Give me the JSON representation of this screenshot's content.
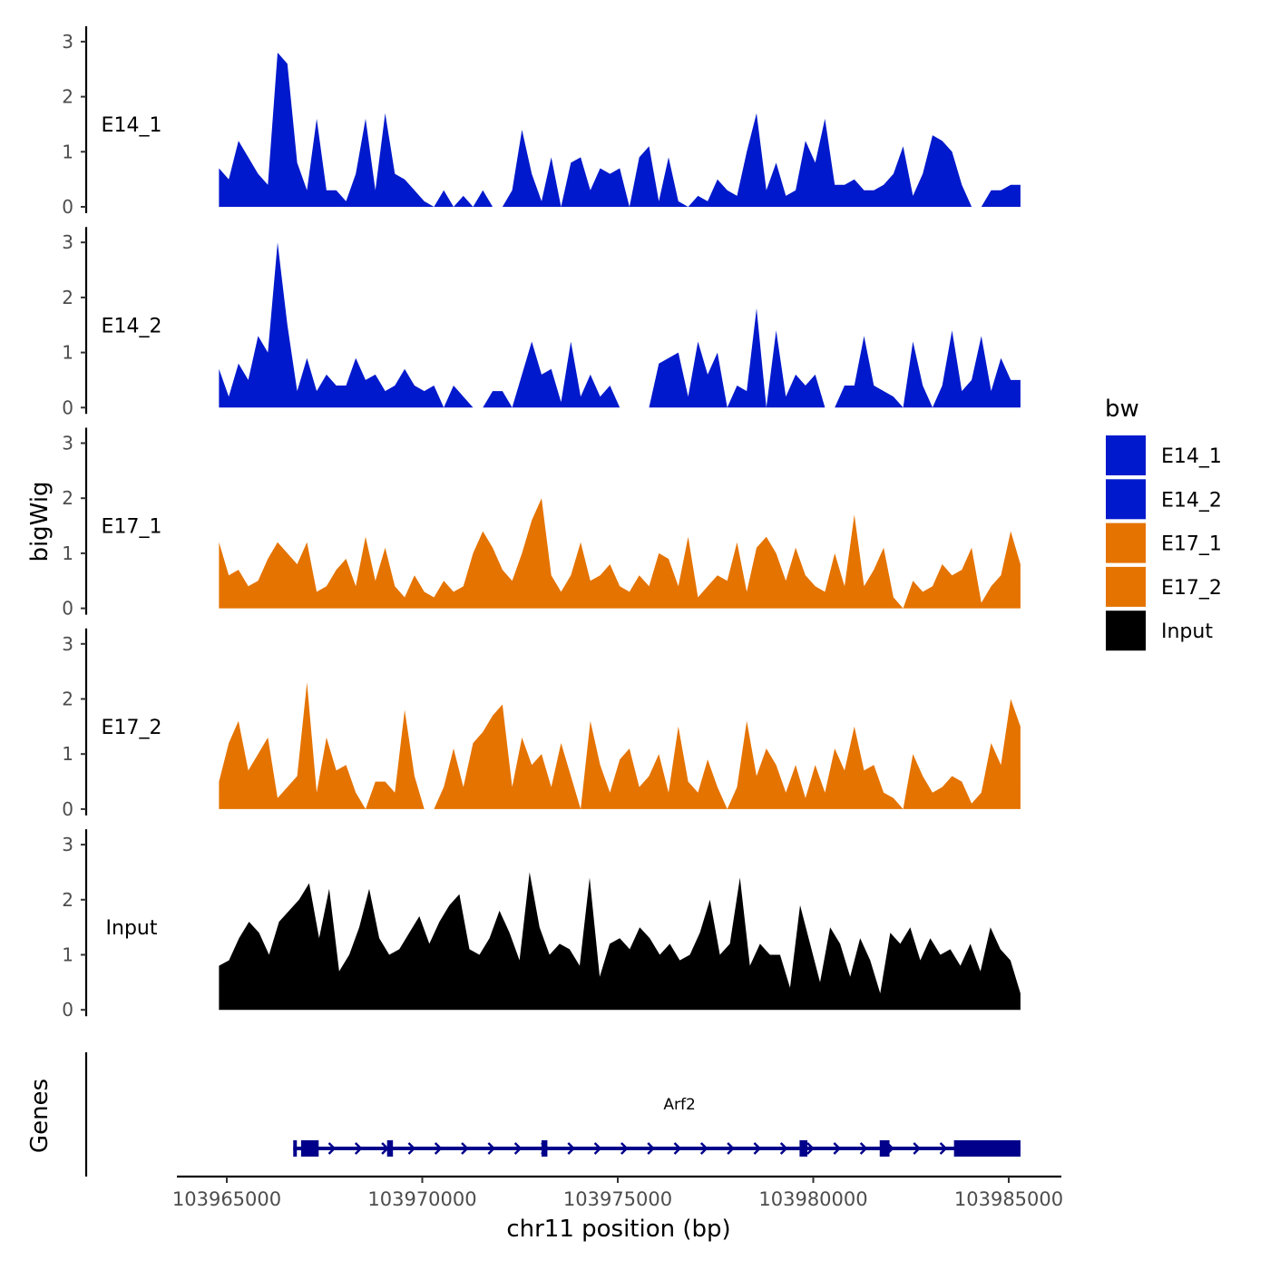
{
  "chart_data": {
    "type": "area",
    "xlabel": "chr11 position (bp)",
    "ylabel": "bigWig",
    "gene_track_label": "Genes",
    "xlim": [
      103962800,
      103985700
    ],
    "x_ticks": [
      103965000,
      103970000,
      103975000,
      103980000,
      103985000
    ],
    "x_tick_labels": [
      "103965000",
      "103970000",
      "103975000",
      "103980000",
      "103985000"
    ],
    "ylim": [
      0,
      3.2
    ],
    "y_ticks": [
      0,
      1,
      2,
      3
    ],
    "y_tick_labels": [
      "0",
      "1",
      "2",
      "3"
    ],
    "signal_x_range": [
      103964800,
      103985300
    ],
    "legend": {
      "title": "bw",
      "position": "right"
    },
    "series": [
      {
        "name": "E14_1",
        "color": "#0019cc",
        "values": [
          0.7,
          0.5,
          1.2,
          0.9,
          0.6,
          0.4,
          2.8,
          2.6,
          0.8,
          0.3,
          1.6,
          0.3,
          0.3,
          0.1,
          0.6,
          1.6,
          0.3,
          1.7,
          0.6,
          0.5,
          0.3,
          0.1,
          0,
          0.3,
          0,
          0.2,
          0,
          0.3,
          0,
          0,
          0.3,
          1.4,
          0.6,
          0.1,
          0.9,
          0,
          0.8,
          0.9,
          0.3,
          0.7,
          0.6,
          0.7,
          0,
          0.9,
          1.1,
          0.1,
          0.9,
          0.1,
          0,
          0.2,
          0.1,
          0.5,
          0.3,
          0.2,
          1.0,
          1.7,
          0.3,
          0.8,
          0.2,
          0.3,
          1.2,
          0.8,
          1.6,
          0.4,
          0.4,
          0.5,
          0.3,
          0.3,
          0.4,
          0.6,
          1.1,
          0.2,
          0.6,
          1.3,
          1.2,
          1.0,
          0.4,
          0,
          0,
          0.3,
          0.3,
          0.4,
          0.4
        ]
      },
      {
        "name": "E14_2",
        "color": "#0019cc",
        "values": [
          0.7,
          0.2,
          0.8,
          0.5,
          1.3,
          1.0,
          3.0,
          1.5,
          0.3,
          0.9,
          0.3,
          0.6,
          0.4,
          0.4,
          0.9,
          0.5,
          0.6,
          0.3,
          0.4,
          0.7,
          0.4,
          0.3,
          0.4,
          0,
          0.4,
          0.2,
          0,
          0,
          0.3,
          0.3,
          0,
          0.6,
          1.2,
          0.6,
          0.7,
          0.1,
          1.2,
          0.2,
          0.6,
          0.2,
          0.4,
          0,
          0,
          0,
          0,
          0.8,
          0.9,
          1.0,
          0.2,
          1.2,
          0.6,
          1.0,
          0,
          0.4,
          0.3,
          1.8,
          0,
          1.4,
          0.2,
          0.6,
          0.4,
          0.6,
          0,
          0,
          0.4,
          0.4,
          1.3,
          0.4,
          0.3,
          0.2,
          0,
          1.2,
          0.4,
          0,
          0.4,
          1.4,
          0.3,
          0.5,
          1.3,
          0.3,
          0.9,
          0.5,
          0.5
        ]
      },
      {
        "name": "E17_1",
        "color": "#e57300",
        "values": [
          1.2,
          0.6,
          0.7,
          0.4,
          0.5,
          0.9,
          1.2,
          1.0,
          0.8,
          1.2,
          0.3,
          0.4,
          0.7,
          0.9,
          0.4,
          1.3,
          0.5,
          1.1,
          0.4,
          0.2,
          0.6,
          0.3,
          0.2,
          0.5,
          0.3,
          0.4,
          1.0,
          1.4,
          1.1,
          0.7,
          0.5,
          1.0,
          1.6,
          2.0,
          0.6,
          0.3,
          0.6,
          1.2,
          0.5,
          0.6,
          0.8,
          0.4,
          0.3,
          0.6,
          0.4,
          1.0,
          0.9,
          0.4,
          1.3,
          0.2,
          0.4,
          0.6,
          0.5,
          1.2,
          0.3,
          1.1,
          1.3,
          1.0,
          0.5,
          1.1,
          0.6,
          0.4,
          0.3,
          1.0,
          0.4,
          1.7,
          0.4,
          0.7,
          1.1,
          0.2,
          0,
          0.5,
          0.3,
          0.4,
          0.8,
          0.6,
          0.7,
          1.1,
          0.1,
          0.4,
          0.6,
          1.4,
          0.8
        ]
      },
      {
        "name": "E17_2",
        "color": "#e57300",
        "values": [
          0.5,
          1.2,
          1.6,
          0.7,
          1.0,
          1.3,
          0.2,
          0.4,
          0.6,
          2.3,
          0.3,
          1.3,
          0.7,
          0.8,
          0.3,
          0,
          0.5,
          0.5,
          0.3,
          1.8,
          0.6,
          0,
          0,
          0.4,
          1.1,
          0.4,
          1.2,
          1.4,
          1.7,
          1.9,
          0.4,
          1.3,
          0.8,
          1.0,
          0.4,
          1.2,
          0.6,
          0,
          1.6,
          0.8,
          0.3,
          0.9,
          1.1,
          0.4,
          0.6,
          1.0,
          0.3,
          1.5,
          0.5,
          0.3,
          0.9,
          0.4,
          0,
          0.4,
          1.6,
          0.6,
          1.1,
          0.8,
          0.3,
          0.8,
          0.2,
          0.8,
          0.3,
          1.1,
          0.7,
          1.5,
          0.7,
          0.8,
          0.3,
          0.2,
          0,
          1.0,
          0.6,
          0.3,
          0.4,
          0.6,
          0.5,
          0.1,
          0.3,
          1.2,
          0.8,
          2.0,
          1.5
        ]
      },
      {
        "name": "Input",
        "color": "#000000",
        "values": [
          0.8,
          0.9,
          1.3,
          1.6,
          1.4,
          1.0,
          1.6,
          1.8,
          2.0,
          2.3,
          1.3,
          2.2,
          0.7,
          1.0,
          1.5,
          2.2,
          1.3,
          1.0,
          1.1,
          1.4,
          1.7,
          1.2,
          1.6,
          1.9,
          2.1,
          1.1,
          1.0,
          1.3,
          1.8,
          1.4,
          0.9,
          2.5,
          1.5,
          1.0,
          1.2,
          1.1,
          0.8,
          2.4,
          0.6,
          1.2,
          1.3,
          1.1,
          1.5,
          1.3,
          1.0,
          1.2,
          0.9,
          1.0,
          1.4,
          2.0,
          1.0,
          1.2,
          2.4,
          0.8,
          1.2,
          1.0,
          1.0,
          0.4,
          1.9,
          1.2,
          0.5,
          1.5,
          1.2,
          0.6,
          1.3,
          0.9,
          0.3,
          1.4,
          1.2,
          1.5,
          0.9,
          1.3,
          1.0,
          1.1,
          0.8,
          1.2,
          0.7,
          1.5,
          1.1,
          0.9,
          0.3
        ]
      }
    ],
    "gene": {
      "name": "Arf2",
      "color": "#00008b",
      "strand": "+",
      "start": 103966700,
      "end": 103985300,
      "exons": [
        [
          103966700,
          103966750
        ],
        [
          103966900,
          103967350
        ],
        [
          103969100,
          103969250
        ],
        [
          103973050,
          103973200
        ],
        [
          103979650,
          103979850
        ],
        [
          103981700,
          103981950
        ],
        [
          103983600,
          103985300
        ]
      ]
    }
  }
}
